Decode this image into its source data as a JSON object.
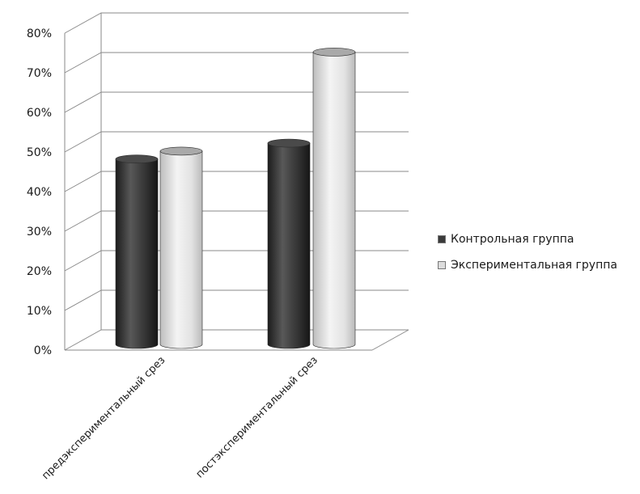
{
  "chart_data": {
    "type": "bar",
    "categories": [
      "предэкспериментальный срез",
      "постэкспериментальный срез"
    ],
    "series": [
      {
        "name": "Контрольная группа",
        "values": [
          47,
          51
        ],
        "color": "#3a3a3a"
      },
      {
        "name": "Экспериментальная группа",
        "values": [
          49,
          74
        ],
        "color": "#dcdcdc"
      }
    ],
    "ylim": [
      0,
      80
    ],
    "yticks": [
      "0%",
      "10%",
      "20%",
      "30%",
      "40%",
      "50%",
      "60%",
      "70%",
      "80%"
    ],
    "grid": true,
    "legend_position": "right",
    "style": "3d-cylinder"
  }
}
